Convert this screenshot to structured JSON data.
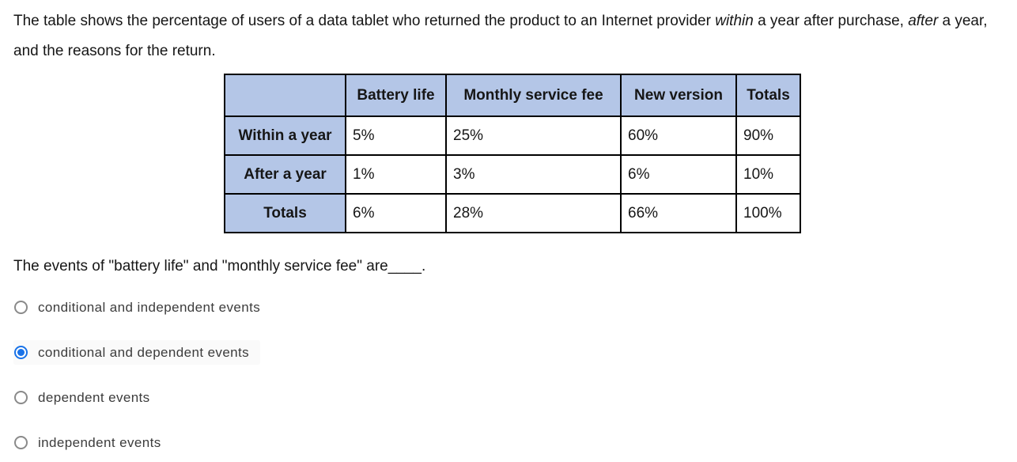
{
  "intro": {
    "part1": "The table shows the percentage of users of a data tablet who returned the product to an Internet provider ",
    "italic_within": "within",
    "part2": " a year after purchase, ",
    "italic_after": "after",
    "part3": " a year, and the reasons for the return."
  },
  "table": {
    "headers": [
      "",
      "Battery life",
      "Monthly service fee",
      "New version",
      "Totals"
    ],
    "rows": [
      {
        "label": "Within a year",
        "cells": [
          "5%",
          "25%",
          "60%",
          "90%"
        ]
      },
      {
        "label": "After a year",
        "cells": [
          "1%",
          "3%",
          "6%",
          "10%"
        ]
      },
      {
        "label": "Totals",
        "cells": [
          "6%",
          "28%",
          "66%",
          "100%"
        ]
      }
    ]
  },
  "question": {
    "text": "The events of \"battery life\" and \"monthly service fee\" are____."
  },
  "options": [
    {
      "label": "conditional and independent events",
      "selected": false
    },
    {
      "label": "conditional and dependent events",
      "selected": true
    },
    {
      "label": "dependent events",
      "selected": false
    },
    {
      "label": "independent events",
      "selected": false
    }
  ],
  "colors": {
    "table_header_bg": "#b4c6e7",
    "table_border": "#000000",
    "radio_selected": "#1a73e8",
    "radio_unselected_ring": "#8a8a8a"
  }
}
